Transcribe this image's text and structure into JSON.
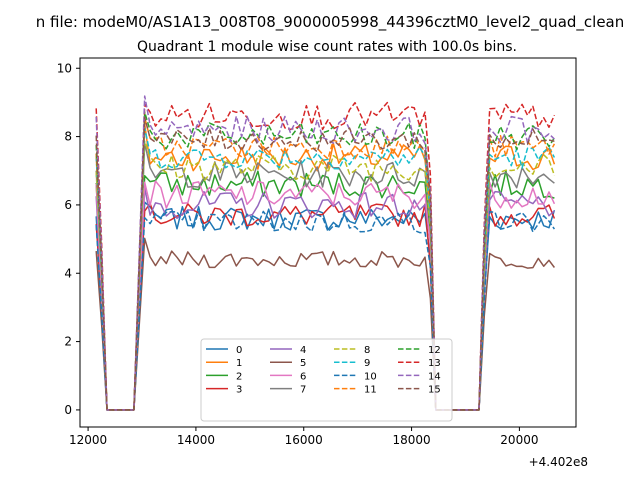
{
  "figure": {
    "suptitle": "n file: modeM0/AS1A13_008T08_9000005998_44396cztM0_level2_quad_clean",
    "offset_text": "+4.402e8"
  },
  "chart_data": {
    "type": "line",
    "title": "Quadrant 1 module wise count rates with 100.0s bins.",
    "xlabel": "",
    "ylabel": "",
    "xlim": [
      11850,
      21050
    ],
    "ylim": [
      -0.5,
      10.3
    ],
    "xticks": [
      12000,
      14000,
      16000,
      18000,
      20000
    ],
    "xtick_labels": [
      "12000",
      "14000",
      "16000",
      "18000",
      "20000"
    ],
    "yticks": [
      0,
      2,
      4,
      6,
      8,
      10
    ],
    "ytick_labels": [
      "0",
      "2",
      "4",
      "6",
      "8",
      "10"
    ],
    "grid": false,
    "legend": {
      "placement": "lower center",
      "columns": 4
    },
    "segments": [
      {
        "x_start": 12150,
        "x_end": 12250,
        "step": 100,
        "mode": "high"
      },
      {
        "x_start": 12350,
        "x_end": 12850,
        "step": 100,
        "mode": "zero"
      },
      {
        "x_start": 13050,
        "x_end": 18350,
        "step": 100,
        "mode": "high"
      },
      {
        "x_start": 18450,
        "x_end": 19250,
        "step": 100,
        "mode": "zero"
      },
      {
        "x_start": 19350,
        "x_end": 20650,
        "step": 100,
        "mode": "high"
      }
    ],
    "series": [
      {
        "name": "0",
        "level": 5.6,
        "noise": 0.35,
        "color": "#1f77b4",
        "dash": "solid"
      },
      {
        "name": "1",
        "level": 7.4,
        "noise": 0.4,
        "color": "#ff7f0e",
        "dash": "solid"
      },
      {
        "name": "2",
        "level": 6.6,
        "noise": 0.4,
        "color": "#2ca02c",
        "dash": "solid"
      },
      {
        "name": "3",
        "level": 5.7,
        "noise": 0.35,
        "color": "#d62728",
        "dash": "solid"
      },
      {
        "name": "4",
        "level": 6.0,
        "noise": 0.4,
        "color": "#9467bd",
        "dash": "solid"
      },
      {
        "name": "5",
        "level": 4.4,
        "noise": 0.25,
        "color": "#8c564b",
        "dash": "solid"
      },
      {
        "name": "6",
        "level": 6.3,
        "noise": 0.4,
        "color": "#e377c2",
        "dash": "solid"
      },
      {
        "name": "7",
        "level": 6.9,
        "noise": 0.4,
        "color": "#7f7f7f",
        "dash": "solid"
      },
      {
        "name": "8",
        "level": 7.1,
        "noise": 0.4,
        "color": "#bcbd22",
        "dash": "dashed"
      },
      {
        "name": "9",
        "level": 7.4,
        "noise": 0.35,
        "color": "#17becf",
        "dash": "dashed"
      },
      {
        "name": "10",
        "level": 5.5,
        "noise": 0.35,
        "color": "#1f77b4",
        "dash": "dashed"
      },
      {
        "name": "11",
        "level": 7.7,
        "noise": 0.35,
        "color": "#ff7f0e",
        "dash": "dashed"
      },
      {
        "name": "12",
        "level": 8.0,
        "noise": 0.4,
        "color": "#2ca02c",
        "dash": "dashed"
      },
      {
        "name": "13",
        "level": 8.6,
        "noise": 0.4,
        "color": "#d62728",
        "dash": "dashed"
      },
      {
        "name": "14",
        "level": 8.2,
        "noise": 0.4,
        "color": "#9467bd",
        "dash": "dashed"
      },
      {
        "name": "15",
        "level": 7.9,
        "noise": 0.35,
        "color": "#8c564b",
        "dash": "dashed"
      }
    ]
  }
}
